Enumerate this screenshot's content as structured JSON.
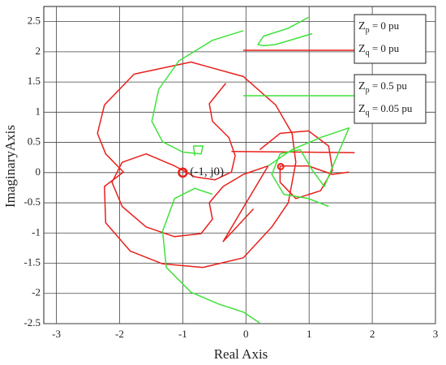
{
  "chart_data": {
    "type": "line",
    "xlabel": "Real Axis",
    "ylabel": "ImaginaryAxis",
    "xlim": [
      -3.2,
      3
    ],
    "ylim": [
      -2.5,
      2.75
    ],
    "xticks": [
      -3,
      -2,
      -1,
      0,
      1,
      2,
      3
    ],
    "yticks": [
      -2.5,
      -2,
      -1.5,
      -1,
      -0.5,
      0,
      0.5,
      1,
      1.5,
      2,
      2.5
    ],
    "grid": true,
    "series": [
      {
        "color": "#e8201c",
        "legend": [
          {
            "var": "Z",
            "sub": "p",
            "text": " = 0 pu"
          },
          {
            "var": "Z",
            "sub": "q",
            "text": " = 0 pu"
          }
        ],
        "x": [
          -1.77,
          -0.87,
          -0.04,
          0.47,
          0.73,
          0.79,
          0.67,
          0.41,
          -0.04,
          -0.68,
          -1.32,
          -1.83,
          -2.22,
          -2.24,
          -1.94,
          -2.22,
          -2.35,
          -2.24,
          -1.77,
          null,
          -0.32,
          -0.58,
          -0.53,
          -0.27,
          -0.17,
          -0.23,
          -0.49,
          -0.81,
          -1.13,
          -1.58,
          -1.96,
          -2.12,
          -1.96,
          -1.58,
          -1.13,
          -0.71,
          -0.53,
          -0.58,
          -0.36,
          -0.04,
          0.35,
          null,
          0.35,
          -0.36,
          0.12,
          null,
          0.22,
          0.54,
          0.99,
          1.31,
          1.37,
          1.18,
          0.79,
          0.54,
          0.54,
          0.99,
          1.37,
          1.63,
          null,
          -0.23,
          1.72
        ],
        "values": [
          1.63,
          1.83,
          1.59,
          1.12,
          0.65,
          0.17,
          -0.5,
          -0.9,
          -1.41,
          -1.57,
          -1.51,
          -1.3,
          -0.83,
          -0.23,
          0.01,
          0.31,
          0.65,
          1.12,
          1.63,
          null,
          1.48,
          1.14,
          0.85,
          0.58,
          0.28,
          0.01,
          -0.12,
          -0.07,
          0.11,
          0.31,
          0.17,
          -0.16,
          -0.56,
          -0.9,
          -1.06,
          -1.01,
          -0.77,
          -0.5,
          -0.23,
          -0.03,
          0.11,
          null,
          0.11,
          -1.14,
          -0.6,
          null,
          0.38,
          0.65,
          0.69,
          0.44,
          0.04,
          -0.3,
          -0.43,
          -0.16,
          0.11,
          0.11,
          -0.03,
          0.01,
          null,
          0.35,
          0.33
        ]
      },
      {
        "color": "#3ee23a",
        "legend": [
          {
            "var": "Z",
            "sub": "p",
            "text": " = 0.5 pu"
          },
          {
            "var": "Z",
            "sub": "q",
            "text": " = 0.05 pu"
          }
        ],
        "x": [
          0.99,
          0.67,
          0.28,
          0.19,
          0.28,
          0.47,
          1.05,
          null,
          -0.04,
          -0.53,
          -1.06,
          -1.38,
          -1.49,
          -1.32,
          -1.0,
          -0.71,
          -0.68,
          -0.83,
          -0.81,
          null,
          -0.53,
          -0.81,
          -1.13,
          -1.32,
          -1.26,
          -0.87,
          -0.42,
          -0.04,
          0.22,
          null,
          0.35,
          0.73,
          1.18,
          1.63,
          1.24,
          1.05,
          0.86,
          0.54,
          0.41,
          0.6,
          0.99,
          1.31
        ],
        "values": [
          2.57,
          2.39,
          2.26,
          2.12,
          2.1,
          2.12,
          2.3,
          null,
          2.35,
          2.19,
          1.85,
          1.38,
          0.85,
          0.51,
          0.34,
          0.31,
          0.44,
          0.44,
          0.28,
          null,
          -0.36,
          -0.26,
          -0.43,
          -0.97,
          -1.57,
          -1.98,
          -2.18,
          -2.31,
          -2.49,
          null,
          0.11,
          0.38,
          0.58,
          0.74,
          -0.23,
          0.04,
          0.38,
          0.31,
          -0.03,
          -0.36,
          -0.43,
          -0.56
        ]
      }
    ],
    "markers": [
      {
        "x": -1,
        "y": 0,
        "color": "#e8201c"
      },
      {
        "x": 0.55,
        "y": 0.1,
        "color": "#e8201c"
      }
    ],
    "annotations": [
      {
        "text": "(-1, j0)",
        "x": -1,
        "y": 0
      }
    ]
  }
}
